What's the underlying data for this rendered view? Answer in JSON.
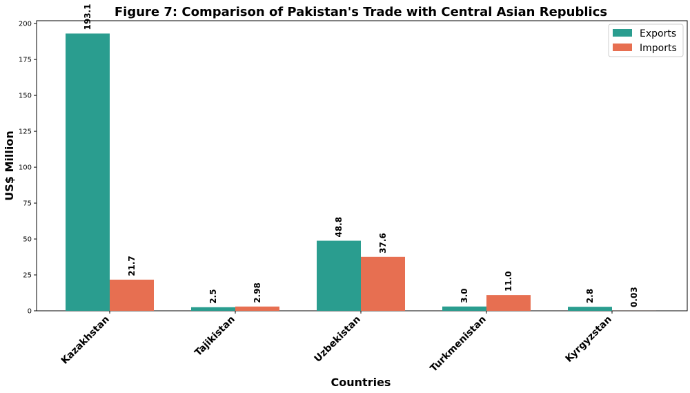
{
  "chart_data": {
    "type": "bar",
    "title": "Figure 7: Comparison of Pakistan's Trade with Central Asian Republics",
    "xlabel": "Countries",
    "ylabel": "US$ Million",
    "categories": [
      "Kazakhstan",
      "Tajikistan",
      "Uzbekistan",
      "Turkmenistan",
      "Kyrgyzstan"
    ],
    "series": [
      {
        "name": "Exports",
        "color": "#2a9d8f",
        "values": [
          193.1,
          2.5,
          48.8,
          3.0,
          2.8
        ],
        "labels": [
          "193.1",
          "2.5",
          "48.8",
          "3.0",
          "2.8"
        ]
      },
      {
        "name": "Imports",
        "color": "#e76f51",
        "values": [
          21.7,
          2.98,
          37.6,
          11.0,
          0.03
        ],
        "labels": [
          "21.7",
          "2.98",
          "37.6",
          "11.0",
          "0.03"
        ]
      }
    ],
    "ylim": [
      0,
      202
    ],
    "yticks": [
      0,
      25,
      50,
      75,
      100,
      125,
      150,
      175,
      200
    ],
    "grid": false,
    "legend_position": "top-right"
  }
}
